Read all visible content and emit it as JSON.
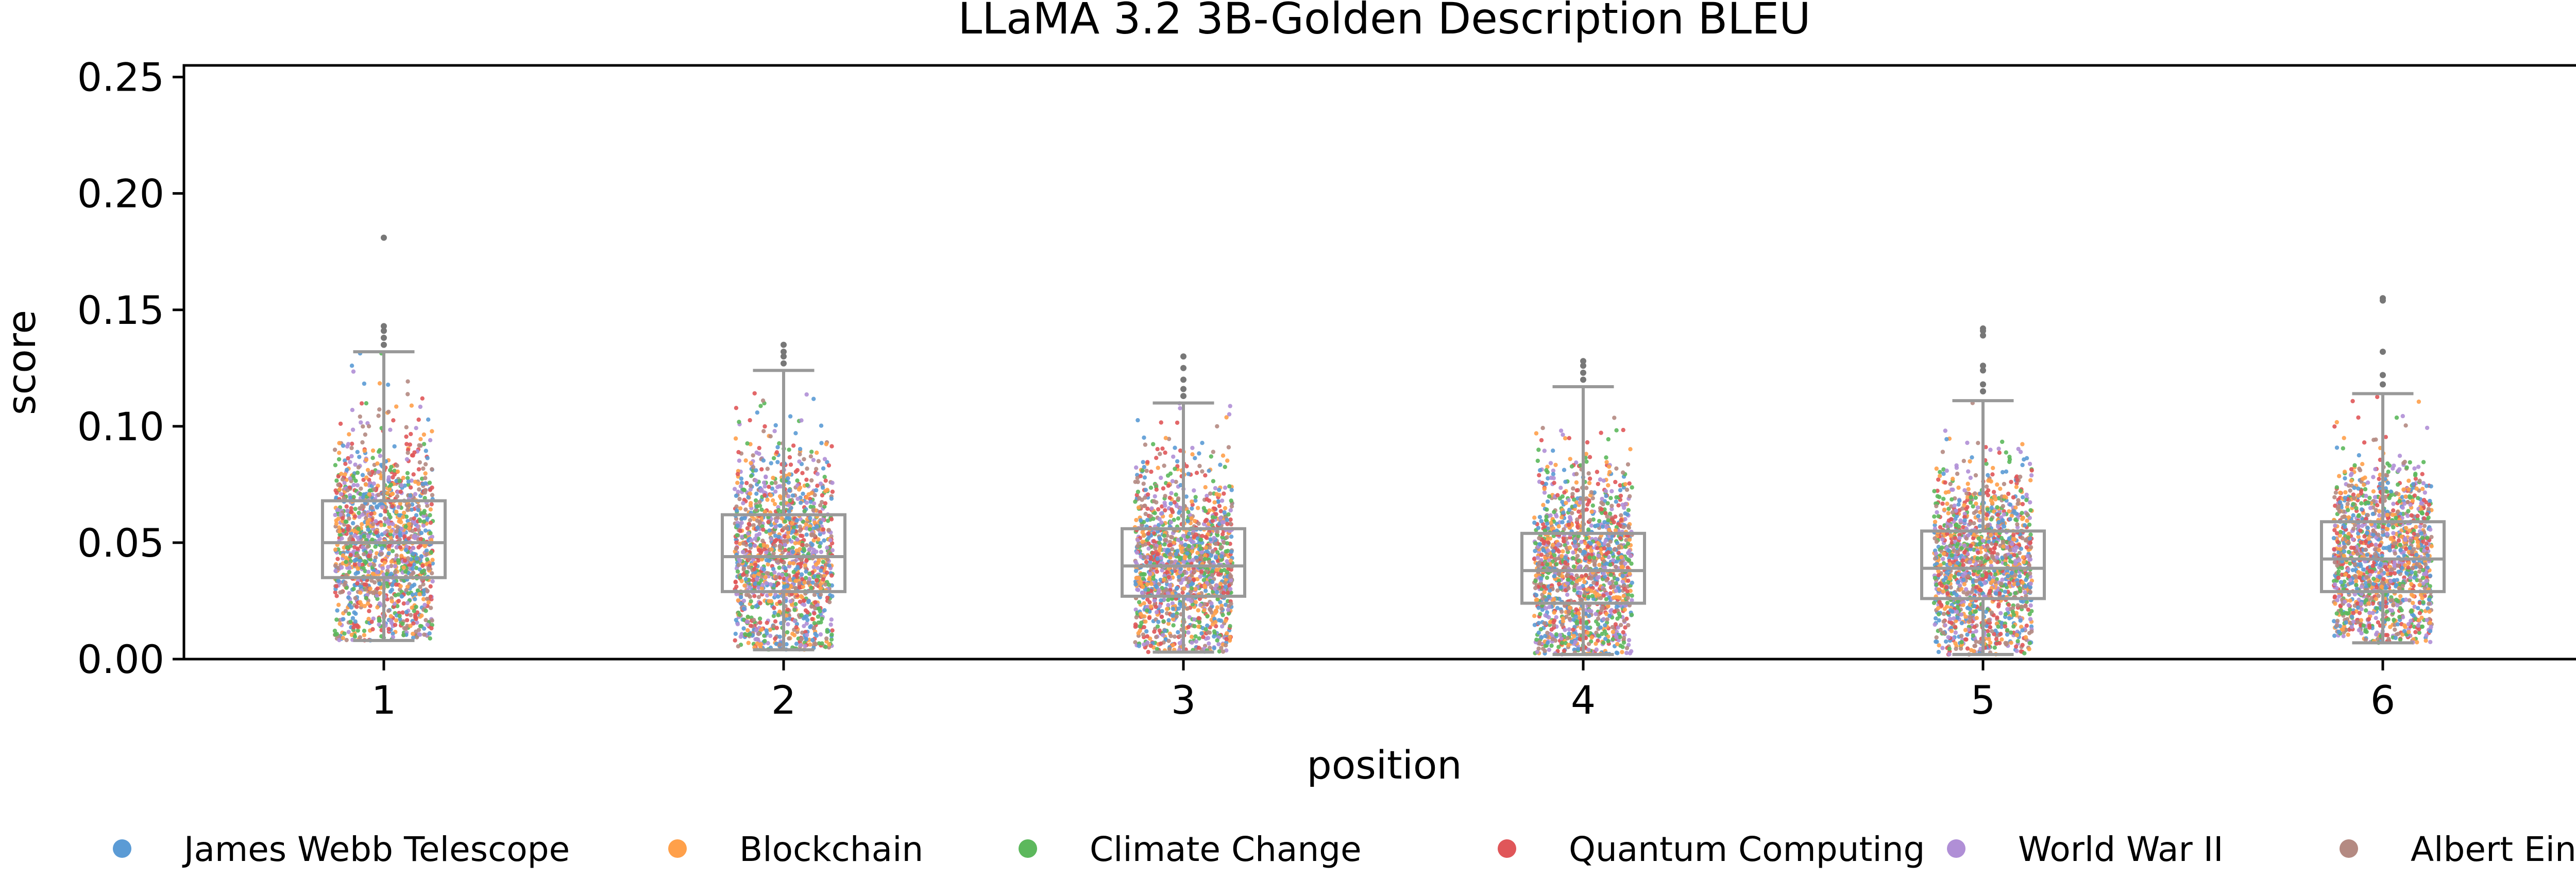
{
  "chart_data": {
    "type": "box",
    "title": "LLaMA 3.2 3B-Golden Description BLEU",
    "xlabel": "position",
    "ylabel": "score",
    "categories": [
      "1",
      "2",
      "3",
      "4",
      "5",
      "6"
    ],
    "ylim": [
      0,
      0.255
    ],
    "yticks": [
      0.0,
      0.05,
      0.1,
      0.15,
      0.2,
      0.25
    ],
    "ytick_labels": [
      "0.00",
      "0.05",
      "0.10",
      "0.15",
      "0.20",
      "0.25"
    ],
    "grid": false,
    "legend_position": "bottom",
    "box_stats": [
      {
        "category": "1",
        "whisker_low": 0.008,
        "q1": 0.035,
        "median": 0.05,
        "q3": 0.068,
        "whisker_high": 0.132,
        "fliers": [
          0.135,
          0.138,
          0.141,
          0.143,
          0.181
        ]
      },
      {
        "category": "2",
        "whisker_low": 0.004,
        "q1": 0.029,
        "median": 0.044,
        "q3": 0.062,
        "whisker_high": 0.124,
        "fliers": [
          0.127,
          0.13,
          0.132,
          0.135
        ]
      },
      {
        "category": "3",
        "whisker_low": 0.003,
        "q1": 0.027,
        "median": 0.04,
        "q3": 0.056,
        "whisker_high": 0.11,
        "fliers": [
          0.113,
          0.116,
          0.12,
          0.125,
          0.13
        ]
      },
      {
        "category": "4",
        "whisker_low": 0.002,
        "q1": 0.024,
        "median": 0.038,
        "q3": 0.054,
        "whisker_high": 0.117,
        "fliers": [
          0.12,
          0.123,
          0.126,
          0.128
        ]
      },
      {
        "category": "5",
        "whisker_low": 0.002,
        "q1": 0.026,
        "median": 0.039,
        "q3": 0.055,
        "whisker_high": 0.111,
        "fliers": [
          0.115,
          0.118,
          0.124,
          0.126,
          0.139,
          0.141,
          0.142
        ]
      },
      {
        "category": "6",
        "whisker_low": 0.007,
        "q1": 0.029,
        "median": 0.043,
        "q3": 0.059,
        "whisker_high": 0.114,
        "fliers": [
          0.118,
          0.122,
          0.132,
          0.154,
          0.155
        ]
      }
    ],
    "series": [
      {
        "name": "James Webb Telescope",
        "color": "#5b9bd5"
      },
      {
        "name": "Blockchain",
        "color": "#ffa04a"
      },
      {
        "name": "Climate Change",
        "color": "#5cb85c"
      },
      {
        "name": "Quantum Computing",
        "color": "#e05659"
      },
      {
        "name": "World War II",
        "color": "#b08fd6"
      },
      {
        "name": "Albert Einstein",
        "color": "#b48a82"
      }
    ],
    "box_color": "#999999"
  }
}
